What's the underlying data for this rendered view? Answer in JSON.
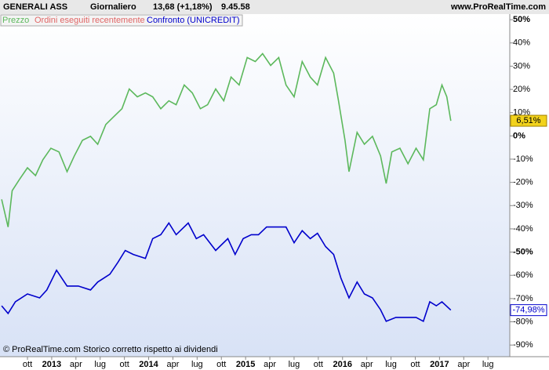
{
  "chart_data": {
    "type": "line",
    "title": "GENERALI ASS",
    "period": "Giornaliero",
    "quote": "13,68 (+1,18%)",
    "time": "9.45.58",
    "site": "www.ProRealTime.com",
    "footer": "© ProRealTime.com  Storico corretto rispetto ai dividendi",
    "legend_note": {
      "text": "Ordini eseguiti recentemente",
      "color": "#e06666"
    },
    "series": [
      {
        "name": "Prezzo",
        "color": "#5cb85c",
        "last_label": "6,51%",
        "x": [
          -3.2,
          -2.4,
          -1.9,
          -1.0,
          0,
          1.0,
          1.9,
          2.9,
          3.9,
          4.9,
          5.8,
          6.8,
          7.8,
          8.7,
          9.7,
          10.7,
          11.7,
          12.6,
          13.6,
          14.6,
          15.5,
          16.5,
          17.5,
          18.4,
          19.4,
          20.4,
          21.4,
          22.3,
          23.3,
          24.3,
          25.2,
          26.2,
          27.2,
          28.2,
          29.1,
          30.1,
          31.1,
          32.0,
          33.0,
          34.0,
          35.0,
          35.9,
          36.9,
          37.9,
          38.5,
          39.3,
          39.8,
          40.8,
          41.7,
          42.7,
          43.7,
          44.4,
          45.1,
          46.1,
          47.1,
          48.1,
          49.0,
          49.8,
          50.6,
          51.3,
          51.9,
          52.4
        ],
        "values": [
          -27.3,
          -39.2,
          -23.6,
          -18.8,
          -13.7,
          -17.1,
          -10.3,
          -5.3,
          -6.9,
          -15.4,
          -8.6,
          -1.9,
          -0.2,
          -3.6,
          4.9,
          8.3,
          11.7,
          20.2,
          16.8,
          18.5,
          16.8,
          11.7,
          15.1,
          13.4,
          21.9,
          18.5,
          11.7,
          13.4,
          20.2,
          15.1,
          25.3,
          21.9,
          33.7,
          32.0,
          35.4,
          30.3,
          33.7,
          21.9,
          16.8,
          32.0,
          25.3,
          21.9,
          33.7,
          27.0,
          15.1,
          -1.9,
          -15.4,
          1.5,
          -3.6,
          -0.2,
          -8.6,
          -20.5,
          -6.9,
          -5.3,
          -12.0,
          -5.3,
          -10.3,
          11.7,
          13.4,
          21.9,
          16.8,
          6.51
        ]
      },
      {
        "name": "Confronto (UNICREDIT)",
        "color": "#0000cc",
        "last_label": "-74,98%",
        "x": [
          -3.2,
          -2.4,
          -1.5,
          0,
          1.5,
          2.4,
          3.6,
          4.9,
          6.3,
          7.8,
          8.7,
          10.2,
          11.2,
          12.1,
          13.1,
          14.6,
          15.5,
          16.5,
          17.5,
          18.4,
          19.9,
          20.9,
          21.8,
          23.3,
          24.8,
          25.7,
          26.7,
          27.7,
          28.6,
          29.6,
          30.6,
          32.0,
          33.0,
          34.0,
          35.0,
          35.9,
          36.9,
          37.9,
          38.8,
          39.8,
          40.8,
          41.7,
          42.7,
          43.7,
          44.4,
          45.6,
          47.1,
          48.1,
          49.0,
          49.8,
          50.6,
          51.3,
          52.4
        ],
        "values": [
          -73.1,
          -76.4,
          -71.4,
          -68.0,
          -69.7,
          -66.3,
          -57.8,
          -64.6,
          -64.6,
          -66.3,
          -62.9,
          -59.5,
          -54.4,
          -49.3,
          -51.0,
          -52.7,
          -44.2,
          -42.5,
          -37.5,
          -42.5,
          -37.5,
          -44.2,
          -42.5,
          -49.3,
          -44.2,
          -51.0,
          -44.2,
          -42.5,
          -42.5,
          -39.2,
          -39.2,
          -39.2,
          -46.0,
          -40.8,
          -44.2,
          -41.9,
          -47.6,
          -51.0,
          -61.2,
          -69.7,
          -62.9,
          -68.0,
          -69.7,
          -74.8,
          -79.8,
          -78.1,
          -78.1,
          -78.1,
          -79.8,
          -71.4,
          -73.1,
          -71.4,
          -74.98
        ]
      }
    ],
    "xlim": [
      -3.4,
      59.7
    ],
    "xticks": [
      {
        "value": 0,
        "label": "ott"
      },
      {
        "value": 3,
        "label": "2013"
      },
      {
        "value": 6,
        "label": "apr"
      },
      {
        "value": 9,
        "label": "lug"
      },
      {
        "value": 12,
        "label": "ott"
      },
      {
        "value": 15,
        "label": "2014"
      },
      {
        "value": 18,
        "label": "apr"
      },
      {
        "value": 21,
        "label": "lug"
      },
      {
        "value": 24,
        "label": "ott"
      },
      {
        "value": 27,
        "label": "2015"
      },
      {
        "value": 30,
        "label": "apr"
      },
      {
        "value": 33,
        "label": "lug"
      },
      {
        "value": 36,
        "label": "ott"
      },
      {
        "value": 39,
        "label": "2016"
      },
      {
        "value": 42,
        "label": "apr"
      },
      {
        "value": 45,
        "label": "lug"
      },
      {
        "value": 48,
        "label": "ott"
      },
      {
        "value": 51,
        "label": "2017"
      },
      {
        "value": 54,
        "label": "apr"
      },
      {
        "value": 57,
        "label": "lug"
      }
    ],
    "ylim": [
      -95,
      52.4
    ],
    "yticks": [
      {
        "value": 50,
        "label": "50%"
      },
      {
        "value": 40,
        "label": "40%"
      },
      {
        "value": 30,
        "label": "30%"
      },
      {
        "value": 20,
        "label": "20%"
      },
      {
        "value": 10,
        "label": "10%"
      },
      {
        "value": 0,
        "label": "0%"
      },
      {
        "value": -10,
        "label": "-10%"
      },
      {
        "value": -20,
        "label": "-20%"
      },
      {
        "value": -30,
        "label": "-30%"
      },
      {
        "value": -40,
        "label": "-40%"
      },
      {
        "value": -50,
        "label": "-50%"
      },
      {
        "value": -60,
        "label": "-60%"
      },
      {
        "value": -70,
        "label": "-70%"
      },
      {
        "value": -80,
        "label": "-80%"
      },
      {
        "value": -90,
        "label": "-90%"
      }
    ]
  }
}
